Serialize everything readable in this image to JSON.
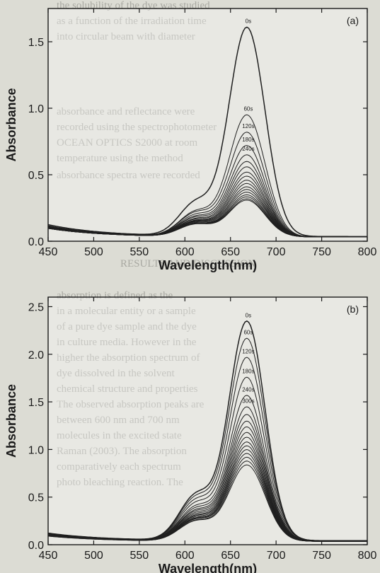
{
  "chart_data": [
    {
      "type": "line",
      "panel_label": "(a)",
      "xlabel": "Wavelength(nm)",
      "ylabel": "Absorbance",
      "xlim": [
        450,
        800
      ],
      "ylim": [
        0.0,
        1.75
      ],
      "xticks": [
        450,
        500,
        550,
        600,
        650,
        700,
        750,
        800
      ],
      "yticks": [
        0.0,
        0.5,
        1.0,
        1.5
      ],
      "ytick_labels": [
        "0.0",
        "0.5",
        "1.0",
        "1.5"
      ],
      "time_labels": [
        "0s",
        "60s",
        "120s",
        "180s",
        "240s"
      ],
      "series_count": 18,
      "peak_x": 668,
      "series": [
        {
          "name": "0s",
          "peak": 1.62,
          "shoulder": 0.65,
          "base500": 0.14,
          "tail": 0.05
        },
        {
          "name": "60s",
          "peak": 0.96,
          "shoulder": 0.42,
          "base500": 0.13,
          "tail": 0.045
        },
        {
          "name": "120s",
          "peak": 0.83,
          "shoulder": 0.38,
          "base500": 0.13,
          "tail": 0.045
        },
        {
          "name": "180s",
          "peak": 0.73,
          "shoulder": 0.34,
          "base500": 0.125,
          "tail": 0.045
        },
        {
          "name": "240s",
          "peak": 0.66,
          "shoulder": 0.31,
          "base500": 0.125,
          "tail": 0.045
        },
        {
          "peak": 0.61,
          "shoulder": 0.29,
          "base500": 0.12,
          "tail": 0.045
        },
        {
          "peak": 0.57,
          "shoulder": 0.27,
          "base500": 0.12,
          "tail": 0.045
        },
        {
          "peak": 0.53,
          "shoulder": 0.255,
          "base500": 0.12,
          "tail": 0.045
        },
        {
          "peak": 0.5,
          "shoulder": 0.24,
          "base500": 0.12,
          "tail": 0.045
        },
        {
          "peak": 0.47,
          "shoulder": 0.23,
          "base500": 0.115,
          "tail": 0.045
        },
        {
          "peak": 0.445,
          "shoulder": 0.22,
          "base500": 0.115,
          "tail": 0.045
        },
        {
          "peak": 0.42,
          "shoulder": 0.21,
          "base500": 0.115,
          "tail": 0.045
        },
        {
          "peak": 0.4,
          "shoulder": 0.2,
          "base500": 0.115,
          "tail": 0.045
        },
        {
          "peak": 0.38,
          "shoulder": 0.19,
          "base500": 0.11,
          "tail": 0.045
        },
        {
          "peak": 0.36,
          "shoulder": 0.185,
          "base500": 0.11,
          "tail": 0.045
        },
        {
          "peak": 0.345,
          "shoulder": 0.18,
          "base500": 0.11,
          "tail": 0.045
        },
        {
          "peak": 0.33,
          "shoulder": 0.175,
          "base500": 0.11,
          "tail": 0.045
        },
        {
          "peak": 0.32,
          "shoulder": 0.17,
          "base500": 0.11,
          "tail": 0.045
        }
      ]
    },
    {
      "type": "line",
      "panel_label": "(b)",
      "xlabel": "Wavelength(nm)",
      "ylabel": "Absorbance",
      "xlim": [
        450,
        800
      ],
      "ylim": [
        0.0,
        2.6
      ],
      "xticks": [
        450,
        500,
        550,
        600,
        650,
        700,
        750,
        800
      ],
      "yticks": [
        0.0,
        0.5,
        1.0,
        1.5,
        2.0,
        2.5
      ],
      "ytick_labels": [
        "0.0",
        "0.5",
        "1.0",
        "1.5",
        "2.0",
        "2.5"
      ],
      "time_labels": [
        "0s",
        "60s",
        "120s",
        "180s",
        "240s",
        "300s"
      ],
      "series_count": 18,
      "peak_x": 668,
      "series": [
        {
          "name": "0s",
          "peak": 2.36,
          "shoulder": 1.05,
          "base500": 0.14,
          "tail": 0.06
        },
        {
          "name": "60s",
          "peak": 2.18,
          "shoulder": 0.98,
          "base500": 0.135,
          "tail": 0.06
        },
        {
          "name": "120s",
          "peak": 1.98,
          "shoulder": 0.9,
          "base500": 0.13,
          "tail": 0.06
        },
        {
          "name": "180s",
          "peak": 1.77,
          "shoulder": 0.82,
          "base500": 0.13,
          "tail": 0.055
        },
        {
          "name": "240s",
          "peak": 1.58,
          "shoulder": 0.74,
          "base500": 0.125,
          "tail": 0.055
        },
        {
          "name": "300s",
          "peak": 1.46,
          "shoulder": 0.69,
          "base500": 0.125,
          "tail": 0.055
        },
        {
          "peak": 1.38,
          "shoulder": 0.65,
          "base500": 0.12,
          "tail": 0.055
        },
        {
          "peak": 1.31,
          "shoulder": 0.62,
          "base500": 0.12,
          "tail": 0.055
        },
        {
          "peak": 1.25,
          "shoulder": 0.59,
          "base500": 0.12,
          "tail": 0.055
        },
        {
          "peak": 1.19,
          "shoulder": 0.565,
          "base500": 0.115,
          "tail": 0.05
        },
        {
          "peak": 1.14,
          "shoulder": 0.54,
          "base500": 0.115,
          "tail": 0.05
        },
        {
          "peak": 1.09,
          "shoulder": 0.52,
          "base500": 0.115,
          "tail": 0.05
        },
        {
          "peak": 1.05,
          "shoulder": 0.5,
          "base500": 0.11,
          "tail": 0.05
        },
        {
          "peak": 1.01,
          "shoulder": 0.48,
          "base500": 0.11,
          "tail": 0.05
        },
        {
          "peak": 0.97,
          "shoulder": 0.465,
          "base500": 0.11,
          "tail": 0.05
        },
        {
          "peak": 0.93,
          "shoulder": 0.45,
          "base500": 0.11,
          "tail": 0.05
        },
        {
          "peak": 0.89,
          "shoulder": 0.43,
          "base500": 0.105,
          "tail": 0.05
        },
        {
          "peak": 0.85,
          "shoulder": 0.415,
          "base500": 0.105,
          "tail": 0.05
        }
      ]
    }
  ],
  "background_text": [
    "the solubility of the dye was studied",
    "as a function of the irradiation time",
    "into circular beam with diameter",
    "absorbance and reflectance were",
    "recorded using the spectrophotometer",
    "OCEAN OPTICS S2000 at room",
    "temperature using the method",
    "absorbance spectra were recorded",
    "RESULTS AND DISCUSSION",
    "absorption is defined as the",
    "in a molecular entity or a sample",
    "of a pure dye sample and the dye",
    "in culture media. However in the",
    "higher the absorption spectrum of",
    "dye dissolved in the solvent",
    "chemical structure and properties",
    "The observed absorption peaks are",
    "between 600 nm and 700 nm",
    "molecules in the excited state",
    "Raman (2003). The absorption",
    "comparatively each spectrum",
    "photo bleaching reaction. The"
  ]
}
